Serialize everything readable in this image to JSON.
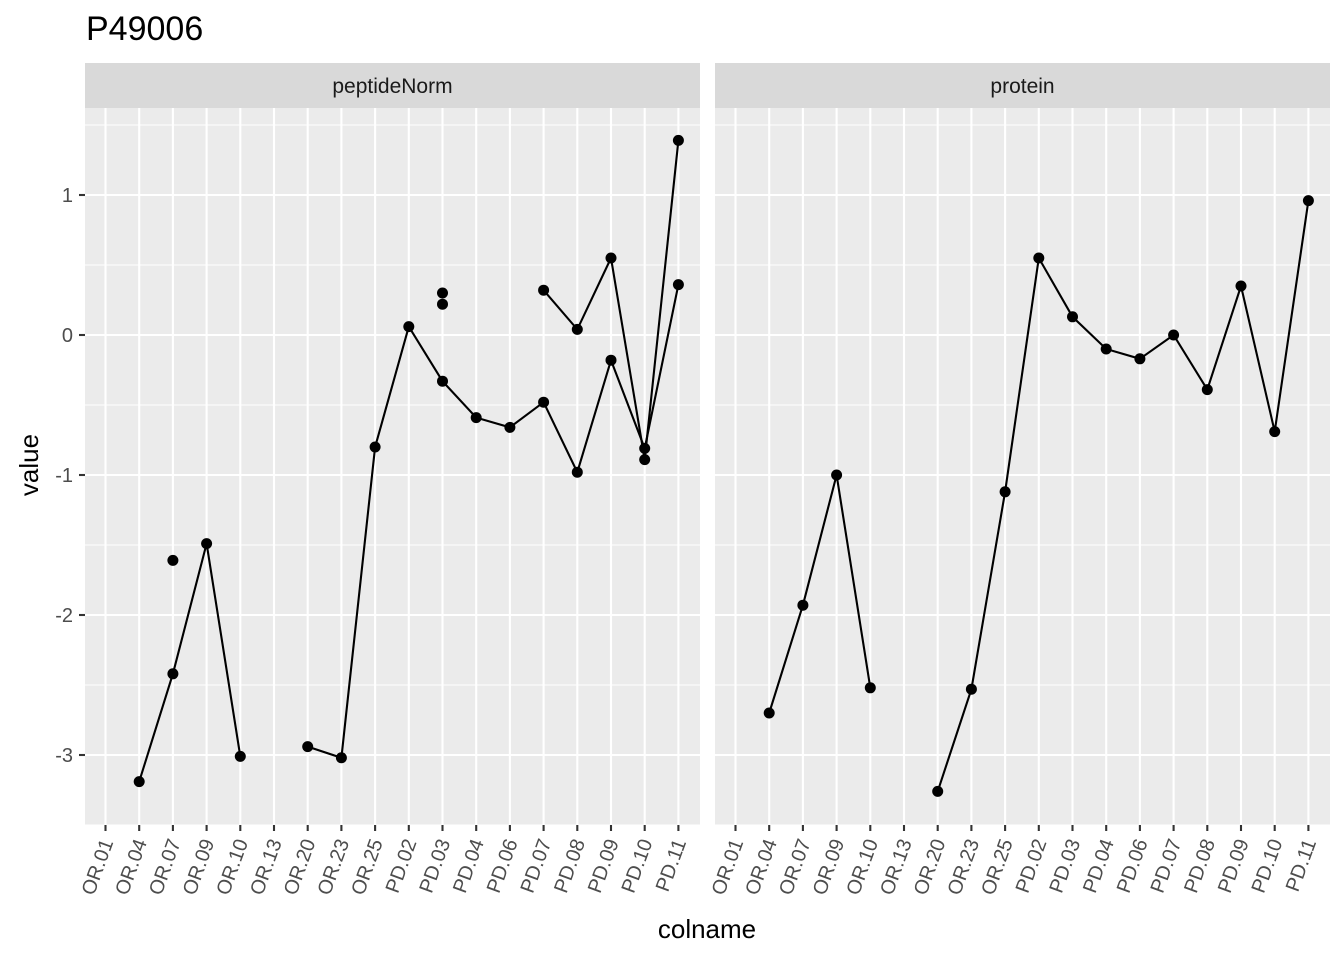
{
  "chart_data": {
    "type": "line",
    "title": "P49006",
    "xlabel": "colname",
    "ylabel": "value",
    "ylim": [
      -3.5,
      1.55
    ],
    "y_ticks": [
      -3,
      -2,
      -1,
      0,
      1
    ],
    "y_tick_labels": [
      "-3",
      "-2",
      "-1",
      "0",
      "1"
    ],
    "grid": true,
    "categories": [
      "OR.01",
      "OR.04",
      "OR.07",
      "OR.09",
      "OR.10",
      "OR.13",
      "OR.20",
      "OR.23",
      "OR.25",
      "PD.02",
      "PD.03",
      "PD.04",
      "PD.06",
      "PD.07",
      "PD.08",
      "PD.09",
      "PD.10",
      "PD.11"
    ],
    "panels": [
      {
        "name": "peptideNorm",
        "series": [
          {
            "values": [
              null,
              -3.19,
              -2.42,
              -1.49,
              -3.01,
              null,
              null,
              null,
              null,
              null,
              null,
              null,
              null,
              null,
              null,
              null,
              null,
              null
            ]
          },
          {
            "values": [
              null,
              null,
              -1.61,
              null,
              null,
              null,
              -2.94,
              -3.02,
              -0.8,
              0.06,
              -0.33,
              -0.59,
              -0.66,
              -0.48,
              -0.98,
              -0.18,
              -0.81,
              0.36
            ]
          },
          {
            "values": [
              null,
              null,
              null,
              null,
              null,
              null,
              null,
              null,
              null,
              null,
              0.3,
              null,
              null,
              0.32,
              0.04,
              0.55,
              -0.89,
              1.39
            ]
          },
          {
            "values": [
              null,
              null,
              null,
              null,
              null,
              null,
              null,
              null,
              null,
              null,
              0.22,
              null,
              null,
              null,
              null,
              null,
              null,
              null
            ]
          }
        ]
      },
      {
        "name": "protein",
        "series": [
          {
            "values": [
              null,
              -2.7,
              -1.93,
              -1.0,
              -2.52,
              null,
              -3.26,
              -2.53,
              -1.12,
              0.55,
              0.13,
              -0.1,
              -0.17,
              0.0,
              -0.39,
              0.35,
              -0.69,
              0.96
            ]
          }
        ]
      }
    ]
  }
}
